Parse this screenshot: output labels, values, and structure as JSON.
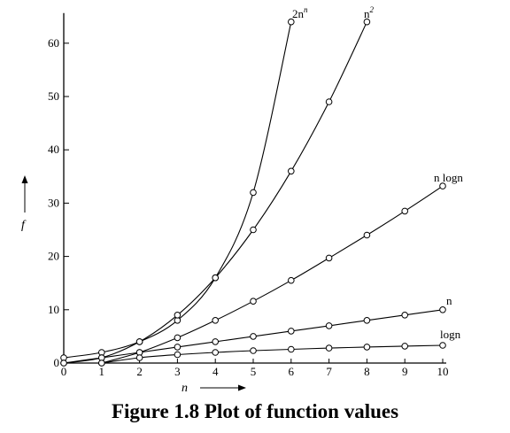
{
  "figure": {
    "caption": "Figure 1.8 Plot of function values"
  },
  "chart_data": {
    "type": "line",
    "title": "",
    "xlabel": "n",
    "ylabel": "f",
    "xlim": [
      0,
      10
    ],
    "ylim": [
      0,
      65
    ],
    "xticks": [
      0,
      1,
      2,
      3,
      4,
      5,
      6,
      7,
      8,
      9,
      10
    ],
    "yticks": [
      0,
      10,
      20,
      30,
      40,
      50,
      60
    ],
    "grid": false,
    "series": [
      {
        "name": "2^n",
        "label": "2n",
        "sup": "n",
        "x": [
          0,
          1,
          2,
          3,
          4,
          5,
          6
        ],
        "y": [
          1,
          2,
          4,
          8,
          16,
          32,
          64
        ]
      },
      {
        "name": "n^2",
        "label": "n",
        "sup": "2",
        "x": [
          0,
          1,
          2,
          3,
          4,
          5,
          6,
          7,
          8
        ],
        "y": [
          0,
          1,
          4,
          9,
          16,
          25,
          36,
          49,
          64
        ]
      },
      {
        "name": "n log n",
        "label": "n logn",
        "sup": "",
        "x": [
          1,
          2,
          3,
          4,
          5,
          6,
          7,
          8,
          9,
          10
        ],
        "y": [
          0,
          2,
          4.75,
          8,
          11.6,
          15.5,
          19.7,
          24,
          28.5,
          33.2
        ]
      },
      {
        "name": "n",
        "label": "n",
        "sup": "",
        "x": [
          0,
          1,
          2,
          3,
          4,
          5,
          6,
          7,
          8,
          9,
          10
        ],
        "y": [
          0,
          1,
          2,
          3,
          4,
          5,
          6,
          7,
          8,
          9,
          10
        ]
      },
      {
        "name": "log n",
        "label": "logn",
        "sup": "",
        "x": [
          1,
          2,
          3,
          4,
          5,
          6,
          7,
          8,
          9,
          10
        ],
        "y": [
          0,
          1,
          1.58,
          2,
          2.32,
          2.58,
          2.81,
          3,
          3.17,
          3.32
        ]
      }
    ]
  }
}
